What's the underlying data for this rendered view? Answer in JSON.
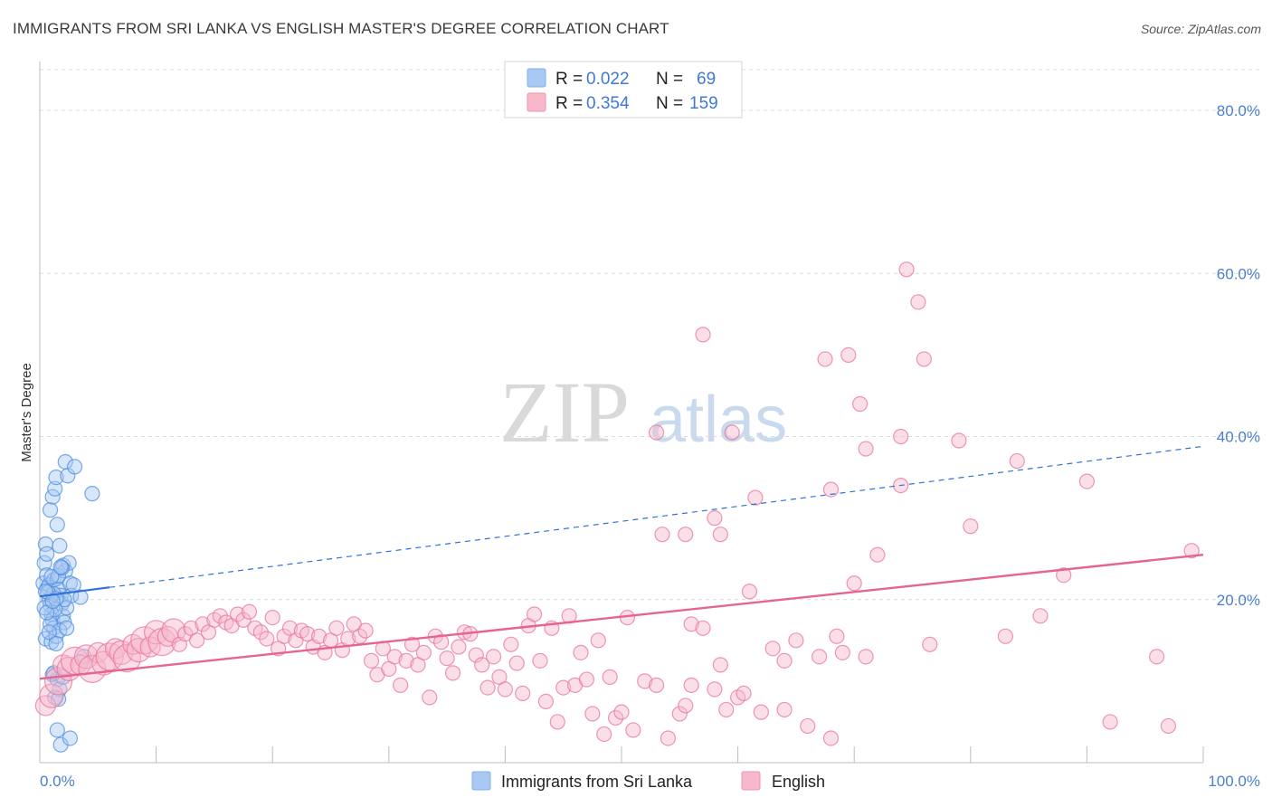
{
  "header": {
    "title": "IMMIGRANTS FROM SRI LANKA VS ENGLISH MASTER'S DEGREE CORRELATION CHART",
    "source": "Source: ZipAtlas.com"
  },
  "watermark": {
    "part1": "ZIP",
    "part2": "atlas"
  },
  "legend": {
    "rows": [
      {
        "r_label": "R =",
        "r_value": "0.022",
        "n_label": "N =",
        "n_value": "69",
        "color": "#a9c8f2"
      },
      {
        "r_label": "R =",
        "r_value": "0.354",
        "n_label": "N =",
        "n_value": "159",
        "color": "#f7b8cc"
      }
    ]
  },
  "bottom_legend": [
    {
      "label": "Immigrants from Sri Lanka",
      "color": "#a9c8f2"
    },
    {
      "label": "English",
      "color": "#f7b8cc"
    }
  ],
  "chart_data": {
    "type": "scatter",
    "title": "IMMIGRANTS FROM SRI LANKA VS ENGLISH MASTER'S DEGREE CORRELATION CHART",
    "xlabel": "",
    "ylabel": "Master's Degree",
    "xlim": [
      0,
      100
    ],
    "ylim": [
      0,
      85
    ],
    "x_tick_labels": [
      "0.0%",
      "100.0%"
    ],
    "y_ticks": [
      20,
      40,
      60,
      80
    ],
    "y_tick_labels": [
      "20.0%",
      "40.0%",
      "60.0%",
      "80.0%"
    ],
    "grid": "horizontal dashed",
    "legend_position": "top-center",
    "series": [
      {
        "name": "Immigrants from Sri Lanka",
        "color": "#4d8fe0",
        "fill": "#a9c8f2",
        "trend": {
          "x": [
            0,
            100
          ],
          "y": [
            20.4,
            38.8
          ],
          "solid_until_x": 6
        },
        "points": [
          [
            0.3,
            22.0
          ],
          [
            0.4,
            24.5
          ],
          [
            0.5,
            26.8
          ],
          [
            0.6,
            23.0
          ],
          [
            0.7,
            21.5
          ],
          [
            0.8,
            20.0
          ],
          [
            0.9,
            19.3
          ],
          [
            1.0,
            18.2
          ],
          [
            1.1,
            17.5
          ],
          [
            1.2,
            16.5
          ],
          [
            0.5,
            15.2
          ],
          [
            0.8,
            21.8
          ],
          [
            1.2,
            22.4
          ],
          [
            1.5,
            22.6
          ],
          [
            1.6,
            21.3
          ],
          [
            1.8,
            20.5
          ],
          [
            1.9,
            19.5
          ],
          [
            2.0,
            18.0
          ],
          [
            2.1,
            17.2
          ],
          [
            1.0,
            14.8
          ],
          [
            1.4,
            15.5
          ],
          [
            0.6,
            25.6
          ],
          [
            0.9,
            31.0
          ],
          [
            1.1,
            32.6
          ],
          [
            1.3,
            33.6
          ],
          [
            1.4,
            35.0
          ],
          [
            1.5,
            29.2
          ],
          [
            1.7,
            26.6
          ],
          [
            2.0,
            24.2
          ],
          [
            2.2,
            23.5
          ],
          [
            2.4,
            35.2
          ],
          [
            2.2,
            36.9
          ],
          [
            3.0,
            36.3
          ],
          [
            4.5,
            33.0
          ],
          [
            2.5,
            24.5
          ],
          [
            2.6,
            22.0
          ],
          [
            2.7,
            20.5
          ],
          [
            2.3,
            19.0
          ],
          [
            1.1,
            10.8
          ],
          [
            1.5,
            10.2
          ],
          [
            1.7,
            9.0
          ],
          [
            1.3,
            8.0
          ],
          [
            1.5,
            4.0
          ],
          [
            1.8,
            2.2
          ],
          [
            2.6,
            3.0
          ],
          [
            1.2,
            20.7
          ],
          [
            1.6,
            22.9
          ],
          [
            1.9,
            23.9
          ],
          [
            2.1,
            20.0
          ],
          [
            0.7,
            20.9
          ],
          [
            0.9,
            17.0
          ],
          [
            1.3,
            18.8
          ],
          [
            1.7,
            16.2
          ],
          [
            1.4,
            20.1
          ],
          [
            0.4,
            19.0
          ],
          [
            0.6,
            18.4
          ],
          [
            1.0,
            22.8
          ],
          [
            1.8,
            24.0
          ],
          [
            2.3,
            16.5
          ],
          [
            0.8,
            16.0
          ],
          [
            1.2,
            11.0
          ],
          [
            2.0,
            10.5
          ],
          [
            1.6,
            7.8
          ],
          [
            0.5,
            21.0
          ],
          [
            1.1,
            19.8
          ],
          [
            3.5,
            20.3
          ],
          [
            2.9,
            21.8
          ],
          [
            3.8,
            13.0
          ],
          [
            1.4,
            14.6
          ]
        ]
      },
      {
        "name": "English",
        "color": "#e8749a",
        "fill": "#f7b8cc",
        "trend": {
          "x": [
            0,
            100
          ],
          "y": [
            10.3,
            25.5
          ]
        },
        "points": [
          [
            0.5,
            7.0
          ],
          [
            1.0,
            8.2
          ],
          [
            1.6,
            10.0
          ],
          [
            2.0,
            12.0
          ],
          [
            2.5,
            11.5
          ],
          [
            3.0,
            12.5
          ],
          [
            3.5,
            12.0
          ],
          [
            4.0,
            13.0
          ],
          [
            4.5,
            11.5
          ],
          [
            5.0,
            13.5
          ],
          [
            5.5,
            12.2
          ],
          [
            6.0,
            13.0
          ],
          [
            6.5,
            14.0
          ],
          [
            7.0,
            13.5
          ],
          [
            7.5,
            12.8
          ],
          [
            8.0,
            14.5
          ],
          [
            8.5,
            13.8
          ],
          [
            9.0,
            15.0
          ],
          [
            9.5,
            14.2
          ],
          [
            10.0,
            16.0
          ],
          [
            10.5,
            14.8
          ],
          [
            11.0,
            15.5
          ],
          [
            11.5,
            16.2
          ],
          [
            12.0,
            14.5
          ],
          [
            12.5,
            15.8
          ],
          [
            13.0,
            16.5
          ],
          [
            13.5,
            15.0
          ],
          [
            14.0,
            17.0
          ],
          [
            14.5,
            16.0
          ],
          [
            15.0,
            17.5
          ],
          [
            15.5,
            18.0
          ],
          [
            16.0,
            17.2
          ],
          [
            16.5,
            16.8
          ],
          [
            17.0,
            18.2
          ],
          [
            17.5,
            17.5
          ],
          [
            18.0,
            18.5
          ],
          [
            18.5,
            16.5
          ],
          [
            19.0,
            16.0
          ],
          [
            19.5,
            15.2
          ],
          [
            20.0,
            17.8
          ],
          [
            20.5,
            14.0
          ],
          [
            21.0,
            15.5
          ],
          [
            21.5,
            16.5
          ],
          [
            22.0,
            15.0
          ],
          [
            22.5,
            16.2
          ],
          [
            23.0,
            15.8
          ],
          [
            23.5,
            14.2
          ],
          [
            24.0,
            15.5
          ],
          [
            24.5,
            13.5
          ],
          [
            25.0,
            15.0
          ],
          [
            25.5,
            16.5
          ],
          [
            26.0,
            13.8
          ],
          [
            26.5,
            15.2
          ],
          [
            27.0,
            17.0
          ],
          [
            27.5,
            15.5
          ],
          [
            28.0,
            16.2
          ],
          [
            28.5,
            12.5
          ],
          [
            29.0,
            10.8
          ],
          [
            29.5,
            14.0
          ],
          [
            30.0,
            11.5
          ],
          [
            30.5,
            13.0
          ],
          [
            31.0,
            9.5
          ],
          [
            31.5,
            12.5
          ],
          [
            32.0,
            14.5
          ],
          [
            32.5,
            12.0
          ],
          [
            33.0,
            13.5
          ],
          [
            33.5,
            8.0
          ],
          [
            34.0,
            15.5
          ],
          [
            34.5,
            14.8
          ],
          [
            35.0,
            12.8
          ],
          [
            35.5,
            11.0
          ],
          [
            36.0,
            14.2
          ],
          [
            36.5,
            16.0
          ],
          [
            37.0,
            15.8
          ],
          [
            37.5,
            13.2
          ],
          [
            38.0,
            12.0
          ],
          [
            38.5,
            9.2
          ],
          [
            39.0,
            13.0
          ],
          [
            39.5,
            10.5
          ],
          [
            40.0,
            9.0
          ],
          [
            40.5,
            14.5
          ],
          [
            41.0,
            12.2
          ],
          [
            41.5,
            8.5
          ],
          [
            42.0,
            16.8
          ],
          [
            42.5,
            18.2
          ],
          [
            43.0,
            12.5
          ],
          [
            43.5,
            7.5
          ],
          [
            44.0,
            16.5
          ],
          [
            44.5,
            5.0
          ],
          [
            45.0,
            9.2
          ],
          [
            45.5,
            18.0
          ],
          [
            46.0,
            9.5
          ],
          [
            46.5,
            13.5
          ],
          [
            47.0,
            10.2
          ],
          [
            47.5,
            6.0
          ],
          [
            48.0,
            15.0
          ],
          [
            48.5,
            3.5
          ],
          [
            49.0,
            10.5
          ],
          [
            49.5,
            5.5
          ],
          [
            50.0,
            6.2
          ],
          [
            50.5,
            17.8
          ],
          [
            51.0,
            4.0
          ],
          [
            52.0,
            10.0
          ],
          [
            53.0,
            9.5
          ],
          [
            54.0,
            3.0
          ],
          [
            55.0,
            6.0
          ],
          [
            55.5,
            7.0
          ],
          [
            56.0,
            17.0
          ],
          [
            57.0,
            16.5
          ],
          [
            58.0,
            9.0
          ],
          [
            58.5,
            12.0
          ],
          [
            59.0,
            6.5
          ],
          [
            60.0,
            8.0
          ],
          [
            61.0,
            21.0
          ],
          [
            62.0,
            6.2
          ],
          [
            63.0,
            14.0
          ],
          [
            64.0,
            6.5
          ],
          [
            65.0,
            15.0
          ],
          [
            66.0,
            4.5
          ],
          [
            67.0,
            13.0
          ],
          [
            68.0,
            3.0
          ],
          [
            68.5,
            15.5
          ],
          [
            69.0,
            13.5
          ],
          [
            70.0,
            22.0
          ],
          [
            71.0,
            13.0
          ],
          [
            72.0,
            25.5
          ],
          [
            74.0,
            34.0
          ],
          [
            80.0,
            29.0
          ],
          [
            86.0,
            18.0
          ],
          [
            88.0,
            23.0
          ],
          [
            92.0,
            5.0
          ],
          [
            96.0,
            13.0
          ],
          [
            99.0,
            26.0
          ],
          [
            57.0,
            52.5
          ],
          [
            67.5,
            49.5
          ],
          [
            69.5,
            50.0
          ],
          [
            70.5,
            44.0
          ],
          [
            71.0,
            38.5
          ],
          [
            74.5,
            60.5
          ],
          [
            75.5,
            56.5
          ],
          [
            76.0,
            49.5
          ],
          [
            74.0,
            40.0
          ],
          [
            59.5,
            40.5
          ],
          [
            61.5,
            32.5
          ],
          [
            58.0,
            30.0
          ],
          [
            58.5,
            28.0
          ],
          [
            55.5,
            28.0
          ],
          [
            53.0,
            40.5
          ],
          [
            53.5,
            28.0
          ],
          [
            68.0,
            33.5
          ],
          [
            79.0,
            39.5
          ],
          [
            84.0,
            37.0
          ],
          [
            56.0,
            9.5
          ],
          [
            60.5,
            8.5
          ],
          [
            64.0,
            12.5
          ],
          [
            76.5,
            14.5
          ],
          [
            83.0,
            15.5
          ],
          [
            90.0,
            34.5
          ],
          [
            97.0,
            4.5
          ]
        ]
      }
    ]
  }
}
